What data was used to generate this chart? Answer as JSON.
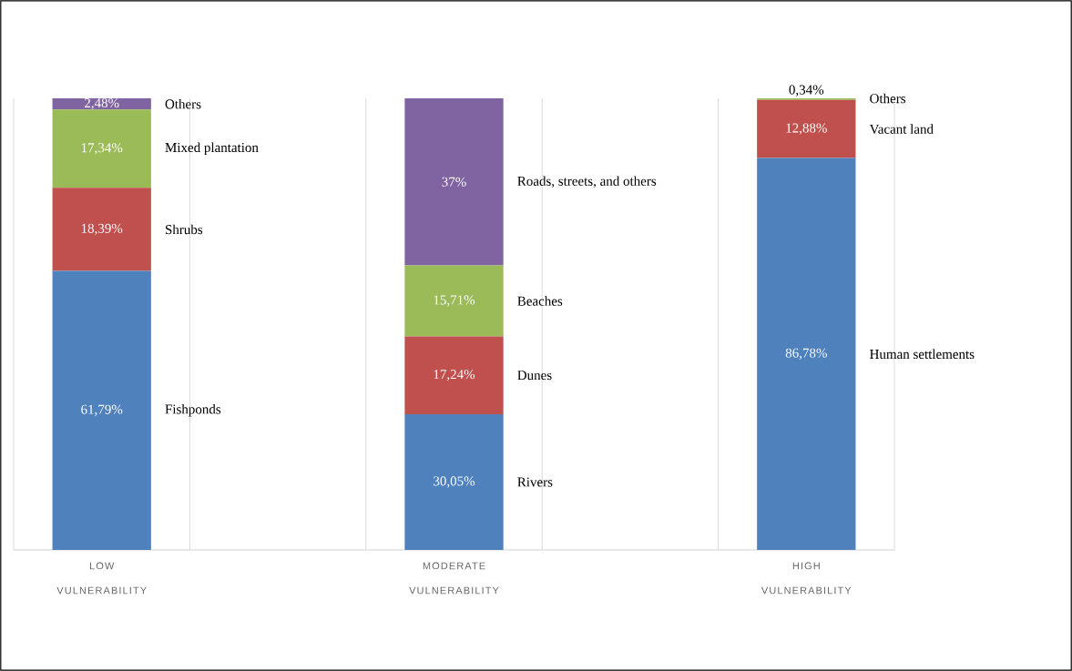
{
  "chart_data": {
    "type": "bar",
    "stacked": true,
    "grid": "x",
    "categories": [
      "LOW VULNERABILITY",
      "MODERATE VULNERABILITY",
      "HIGH VULNERABILITY"
    ],
    "series": [
      {
        "color": "#4f81bd",
        "values": [
          61.79,
          30.05,
          86.78
        ],
        "value_labels": [
          "61,79%",
          "30,05%",
          "86,78%"
        ]
      },
      {
        "color": "#c0504d",
        "values": [
          18.39,
          17.24,
          12.88
        ],
        "value_labels": [
          "18,39%",
          "17,24%",
          "12,88%"
        ]
      },
      {
        "color": "#9bbb59",
        "values": [
          17.34,
          15.71,
          0.34
        ],
        "value_labels": [
          "17,34%",
          "15,71%",
          "0,34%"
        ]
      },
      {
        "color": "#8064a2",
        "values": [
          2.48,
          37,
          null
        ],
        "value_labels": [
          "2,48%",
          "37%",
          null
        ]
      }
    ],
    "annotations": [
      "Fishponds",
      "Shrubs",
      "Mixed plantation",
      "Others",
      "Rivers",
      "Dunes",
      "Beaches",
      "Roads, streets, and others",
      "Human settlements",
      "Vacant land",
      "Others"
    ]
  }
}
